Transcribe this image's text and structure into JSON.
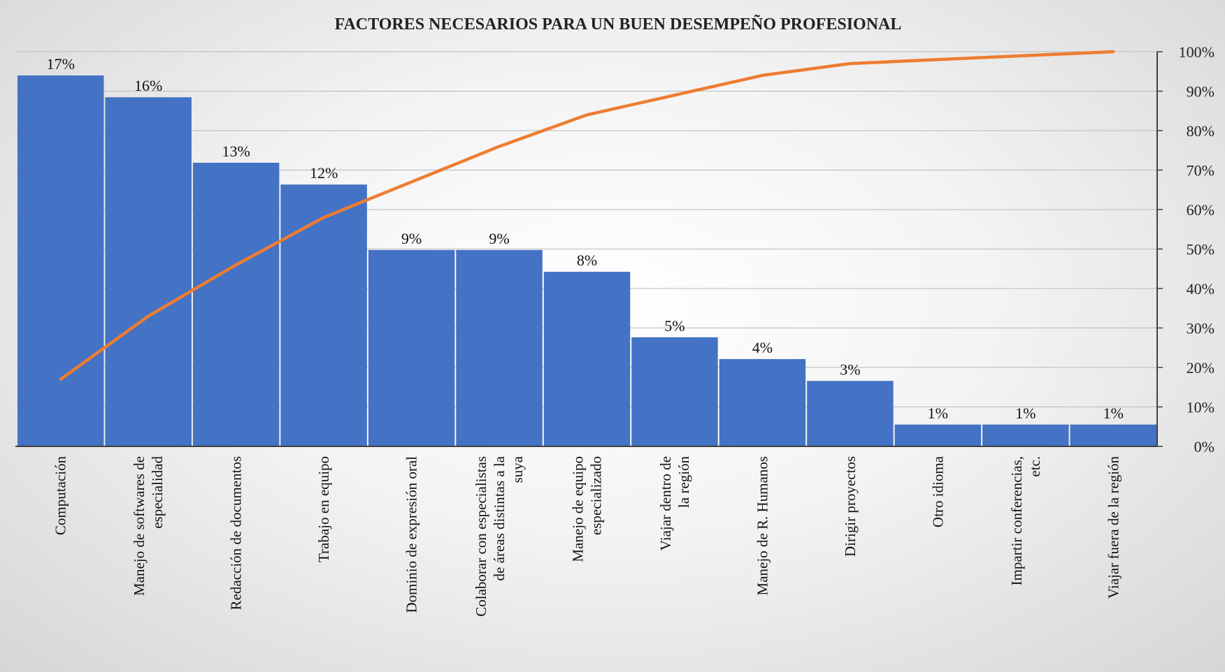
{
  "chart_data": {
    "type": "bar",
    "title": "FACTORES NECESARIOS PARA UN BUEN DESEMPEÑO PROFESIONAL",
    "categories": [
      [
        "Computación"
      ],
      [
        "Manejo de softwares de",
        "especialidad"
      ],
      [
        "Redacción de documentos"
      ],
      [
        "Trabajo en equipo"
      ],
      [
        "Dominio de expresión oral"
      ],
      [
        "Colaborar con especialistas",
        "de áreas distintas a la",
        "suya"
      ],
      [
        "Manejo de equipo",
        "especializado"
      ],
      [
        "Viajar dentro de",
        "la región"
      ],
      [
        "Manejo de R. Humanos"
      ],
      [
        "Dirigir proyectos"
      ],
      [
        "Otro idioma"
      ],
      [
        "Impartir conferencias,",
        "etc."
      ],
      [
        "Viajar fuera de la región"
      ]
    ],
    "series": [
      {
        "type": "bar",
        "color": "#4472C4",
        "values": [
          17,
          16,
          13,
          12,
          9,
          9,
          8,
          5,
          4,
          3,
          1,
          1,
          1
        ],
        "data_labels": [
          "17%",
          "16%",
          "13%",
          "12%",
          "9%",
          "9%",
          "8%",
          "5%",
          "4%",
          "3%",
          "1%",
          "1%",
          "1%"
        ]
      },
      {
        "type": "line",
        "axis": "right",
        "color": "#ED7D31",
        "values": [
          17,
          33,
          46,
          58,
          67,
          76,
          84,
          89,
          94,
          97,
          98,
          99,
          100
        ]
      }
    ],
    "y_right": {
      "range": [
        0,
        100
      ],
      "ticks": [
        "0%",
        "10%",
        "20%",
        "30%",
        "40%",
        "50%",
        "60%",
        "70%",
        "80%",
        "90%",
        "100%"
      ]
    },
    "bar_axis_range": [
      0,
      18
    ],
    "grid": true,
    "legend": "none"
  }
}
